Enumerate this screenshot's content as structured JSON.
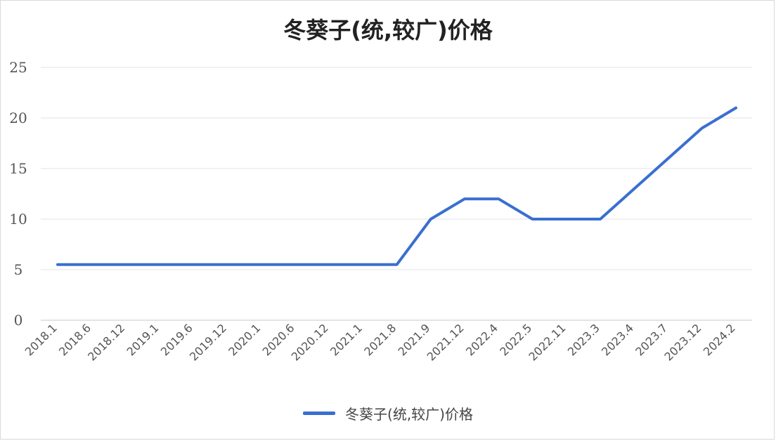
{
  "chart_data": {
    "type": "line",
    "title": "冬葵子(统,较广)价格",
    "categories": [
      "2018.1",
      "2018.6",
      "2018.12",
      "2019.1",
      "2019.6",
      "2019.12",
      "2020.1",
      "2020.6",
      "2020.12",
      "2021.1",
      "2021.8",
      "2021.9",
      "2021.12",
      "2022.4",
      "2022.5",
      "2022.11",
      "2023.3",
      "2023.4",
      "2023.7",
      "2023.12",
      "2024.2"
    ],
    "series": [
      {
        "name": "冬葵子(统,较广)价格",
        "values": [
          5.5,
          5.5,
          5.5,
          5.5,
          5.5,
          5.5,
          5.5,
          5.5,
          5.5,
          5.5,
          5.5,
          10,
          12,
          12,
          10,
          10,
          10,
          13,
          16,
          19,
          21
        ]
      }
    ],
    "ylim": [
      0,
      25
    ],
    "yticks": [
      0,
      5,
      10,
      15,
      20,
      25
    ],
    "grid": true,
    "legend": "bottom",
    "line_color": "#3a6fcf"
  }
}
